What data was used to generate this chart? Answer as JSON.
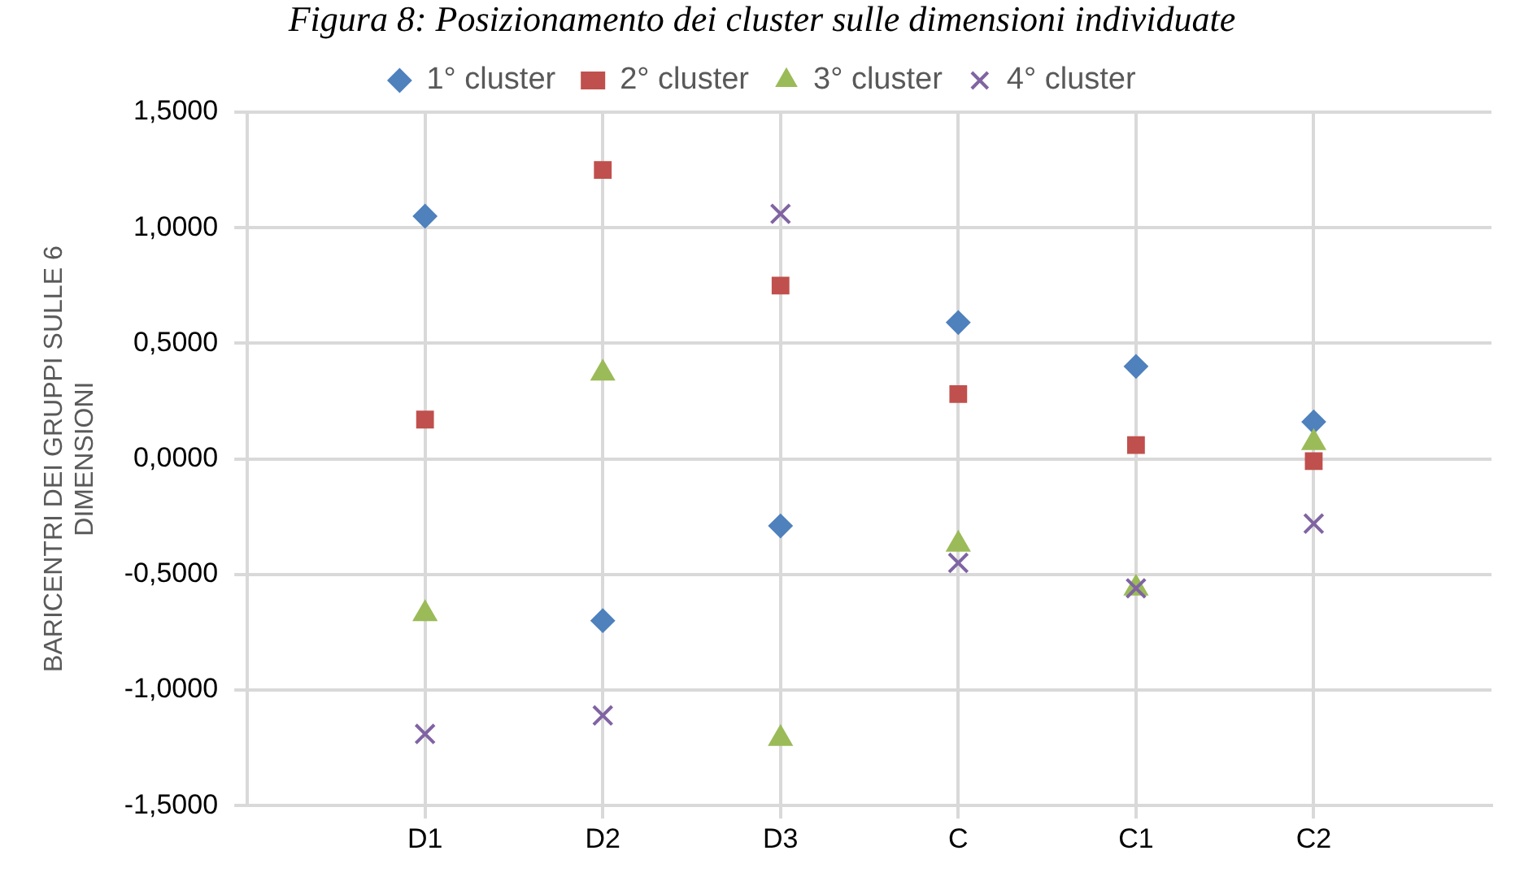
{
  "chart_data": {
    "type": "scatter",
    "title": "Figura 8: Posizionamento dei cluster sulle dimensioni individuate",
    "ylabel": "BARICENTRI DEI GRUPPI SULLE 6 DIMENSIONI",
    "categories": [
      "D1",
      "D2",
      "D3",
      "C",
      "C1",
      "C2"
    ],
    "series": [
      {
        "name": "1° cluster",
        "color": "#4f81bd",
        "marker": "diamond",
        "values": [
          1.05,
          -0.7,
          -0.29,
          0.59,
          0.4,
          0.16
        ]
      },
      {
        "name": "2° cluster",
        "color": "#c0504d",
        "marker": "square",
        "values": [
          0.17,
          1.25,
          0.75,
          0.28,
          0.06,
          -0.01
        ]
      },
      {
        "name": "3° cluster",
        "color": "#9bbb59",
        "marker": "triangle",
        "values": [
          -0.67,
          0.37,
          -1.21,
          -0.37,
          -0.56,
          0.07
        ]
      },
      {
        "name": "4° cluster",
        "color": "#8064a2",
        "marker": "cross",
        "values": [
          -1.19,
          -1.11,
          1.06,
          -0.45,
          -0.56,
          -0.28
        ]
      }
    ],
    "ylim": [
      -1.5,
      1.5
    ],
    "yticks": [
      {
        "value": -1.5,
        "label": "-1,5000"
      },
      {
        "value": -1,
        "label": "-1,0000"
      },
      {
        "value": -0.5,
        "label": "-0,5000"
      },
      {
        "value": 0,
        "label": "0,0000"
      },
      {
        "value": 0.5,
        "label": "0,5000"
      },
      {
        "value": 1,
        "label": "1,0000"
      },
      {
        "value": 1.5,
        "label": "1,5000"
      }
    ],
    "grid": true,
    "legend": "top"
  }
}
